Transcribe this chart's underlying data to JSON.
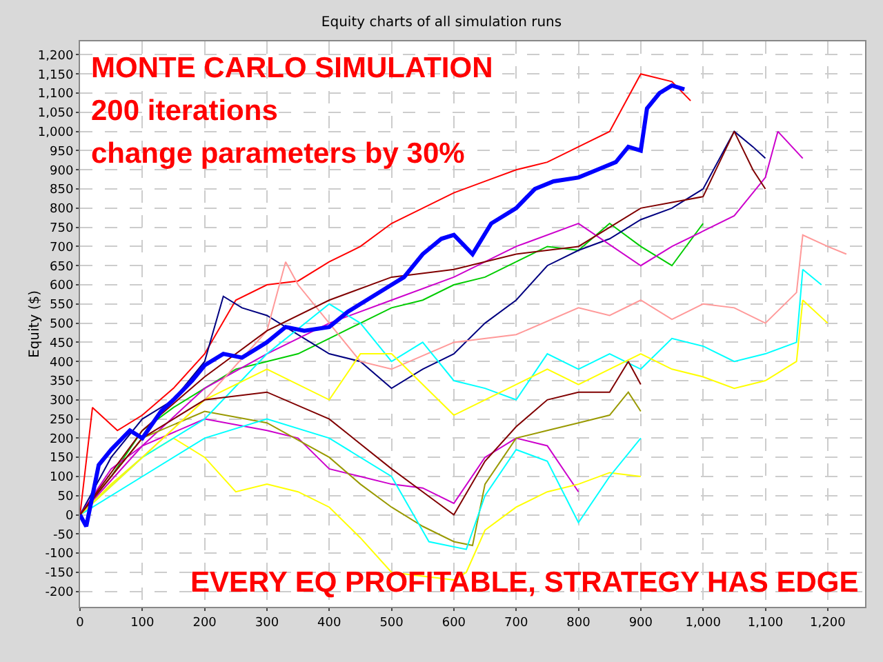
{
  "chart_data": {
    "type": "line",
    "title": "Equity charts of all simulation runs",
    "ylabel": "Equity ($)",
    "annotations": [
      "MONTE CARLO SIMULATION",
      "200 iterations",
      "change parameters by 30%",
      "EVERY EQ PROFITABLE, STRATEGY HAS EDGE"
    ],
    "xlim": [
      0,
      1260
    ],
    "ylim": [
      -240,
      1235
    ],
    "xticks": [
      0,
      100,
      200,
      300,
      400,
      500,
      600,
      700,
      800,
      900,
      {
        "value": 1000,
        "label": "1,000"
      },
      {
        "value": 1100,
        "label": "1,100"
      },
      {
        "value": 1200,
        "label": "1,200"
      }
    ],
    "yticks": [
      -200,
      -150,
      -100,
      -50,
      0,
      50,
      100,
      150,
      200,
      250,
      300,
      350,
      400,
      450,
      500,
      550,
      600,
      650,
      700,
      750,
      800,
      850,
      900,
      950,
      {
        "value": 1000,
        "label": "1,000"
      },
      {
        "value": 1050,
        "label": "1,050"
      },
      {
        "value": 1100,
        "label": "1,100"
      },
      {
        "value": 1150,
        "label": "1,150"
      },
      {
        "value": 1200,
        "label": "1,200"
      }
    ],
    "grid": true,
    "line_style": "solid",
    "marker": "none",
    "series": [
      {
        "color": "#ff0000",
        "x": [
          0,
          20,
          60,
          100,
          150,
          200,
          250,
          300,
          350,
          400,
          450,
          500,
          550,
          600,
          650,
          700,
          750,
          800,
          850,
          870,
          900,
          950,
          980
        ],
        "values": [
          0,
          280,
          220,
          260,
          330,
          420,
          560,
          600,
          610,
          660,
          700,
          760,
          800,
          840,
          870,
          900,
          920,
          960,
          1000,
          1060,
          1150,
          1130,
          1080
        ]
      },
      {
        "color": "#00cc00",
        "x": [
          0,
          50,
          100,
          150,
          200,
          250,
          300,
          350,
          400,
          450,
          500,
          550,
          600,
          650,
          700,
          750,
          800,
          850,
          900,
          950,
          1000
        ],
        "values": [
          0,
          100,
          220,
          280,
          330,
          380,
          400,
          420,
          460,
          500,
          540,
          560,
          600,
          620,
          660,
          700,
          690,
          760,
          700,
          650,
          760
        ]
      },
      {
        "color": "#000080",
        "x": [
          0,
          50,
          100,
          150,
          200,
          230,
          260,
          300,
          350,
          400,
          450,
          500,
          550,
          600,
          650,
          700,
          750,
          800,
          850,
          900,
          950,
          1000,
          1050,
          1080,
          1100
        ],
        "values": [
          0,
          150,
          250,
          300,
          400,
          570,
          540,
          520,
          470,
          420,
          400,
          330,
          380,
          420,
          500,
          560,
          650,
          690,
          720,
          770,
          800,
          850,
          1000,
          960,
          930
        ]
      },
      {
        "color": "#cc00cc",
        "x": [
          0,
          50,
          100,
          200,
          300,
          350,
          400,
          450,
          500,
          550,
          600,
          650,
          700,
          750,
          800
        ],
        "values": [
          0,
          120,
          180,
          250,
          220,
          200,
          120,
          100,
          80,
          70,
          30,
          150,
          200,
          180,
          60
        ]
      },
      {
        "color": "#cc00cc",
        "x": [
          0,
          100,
          200,
          300,
          400,
          500,
          600,
          700,
          800,
          900,
          950,
          1000,
          1050,
          1100,
          1120,
          1160
        ],
        "values": [
          0,
          180,
          330,
          420,
          500,
          560,
          620,
          700,
          760,
          650,
          700,
          740,
          780,
          880,
          1000,
          930
        ]
      },
      {
        "color": "#ffff00",
        "x": [
          0,
          50,
          100,
          150,
          200,
          250,
          300,
          350,
          400,
          450,
          500,
          550,
          600,
          620,
          650,
          700,
          750,
          800,
          850,
          900
        ],
        "values": [
          0,
          80,
          150,
          200,
          150,
          60,
          80,
          60,
          20,
          -60,
          -150,
          -160,
          -170,
          -150,
          -40,
          20,
          60,
          80,
          110,
          100
        ]
      },
      {
        "color": "#999900",
        "x": [
          0,
          100,
          200,
          300,
          400,
          450,
          500,
          550,
          600,
          630,
          650,
          700,
          750,
          800,
          850,
          880,
          900
        ],
        "values": [
          0,
          200,
          270,
          240,
          150,
          80,
          20,
          -30,
          -70,
          -80,
          80,
          200,
          220,
          240,
          260,
          320,
          270
        ]
      },
      {
        "color": "#00ffff",
        "x": [
          0,
          100,
          200,
          300,
          400,
          500,
          560,
          620,
          650,
          700,
          750,
          800,
          850,
          900
        ],
        "values": [
          0,
          100,
          200,
          250,
          200,
          100,
          -70,
          -90,
          50,
          170,
          140,
          -20,
          100,
          200
        ]
      },
      {
        "color": "#ff9999",
        "x": [
          0,
          100,
          200,
          300,
          330,
          350,
          400,
          450,
          500,
          600,
          700,
          800,
          850,
          900,
          950,
          1000,
          1050,
          1100,
          1150,
          1160,
          1200,
          1230
        ],
        "values": [
          0,
          150,
          300,
          480,
          660,
          600,
          500,
          400,
          380,
          450,
          470,
          540,
          520,
          560,
          510,
          550,
          540,
          500,
          580,
          730,
          700,
          680
        ]
      },
      {
        "color": "#00ffff",
        "x": [
          0,
          100,
          200,
          300,
          400,
          450,
          500,
          550,
          600,
          650,
          700,
          750,
          800,
          850,
          900,
          950,
          1000,
          1050,
          1100,
          1150,
          1160,
          1190
        ],
        "values": [
          0,
          150,
          250,
          420,
          550,
          500,
          400,
          450,
          350,
          330,
          300,
          420,
          380,
          420,
          380,
          460,
          440,
          400,
          420,
          450,
          640,
          600
        ]
      },
      {
        "color": "#ffff00",
        "x": [
          0,
          100,
          200,
          300,
          400,
          450,
          500,
          600,
          650,
          700,
          750,
          800,
          850,
          900,
          950,
          1000,
          1050,
          1100,
          1150,
          1160,
          1200
        ],
        "values": [
          0,
          150,
          300,
          380,
          300,
          420,
          420,
          260,
          300,
          340,
          380,
          340,
          380,
          420,
          380,
          360,
          330,
          350,
          400,
          560,
          500
        ]
      },
      {
        "color": "#800000",
        "x": [
          0,
          100,
          200,
          300,
          400,
          500,
          550,
          600,
          650,
          700,
          750,
          800,
          850,
          880,
          900
        ],
        "values": [
          0,
          200,
          300,
          320,
          250,
          120,
          60,
          0,
          140,
          230,
          300,
          320,
          320,
          400,
          340
        ]
      },
      {
        "color": "#800000",
        "x": [
          0,
          100,
          200,
          300,
          400,
          500,
          600,
          700,
          800,
          900,
          1000,
          1050,
          1080,
          1100
        ],
        "values": [
          0,
          220,
          360,
          480,
          560,
          620,
          640,
          680,
          700,
          800,
          830,
          1000,
          900,
          850
        ]
      },
      {
        "color": "#0000ff",
        "x": [
          0,
          10,
          20,
          30,
          50,
          80,
          100,
          130,
          150,
          180,
          200,
          230,
          260,
          300,
          330,
          360,
          400,
          430,
          460,
          500,
          520,
          550,
          580,
          600,
          630,
          660,
          700,
          730,
          760,
          800,
          830,
          860,
          880,
          900,
          910,
          930,
          950,
          970
        ],
        "values": [
          0,
          -30,
          50,
          130,
          170,
          220,
          200,
          270,
          300,
          350,
          390,
          420,
          410,
          450,
          490,
          480,
          490,
          530,
          560,
          600,
          620,
          680,
          720,
          730,
          680,
          760,
          800,
          850,
          870,
          880,
          900,
          920,
          960,
          950,
          1060,
          1100,
          1120,
          1110
        ]
      }
    ]
  }
}
